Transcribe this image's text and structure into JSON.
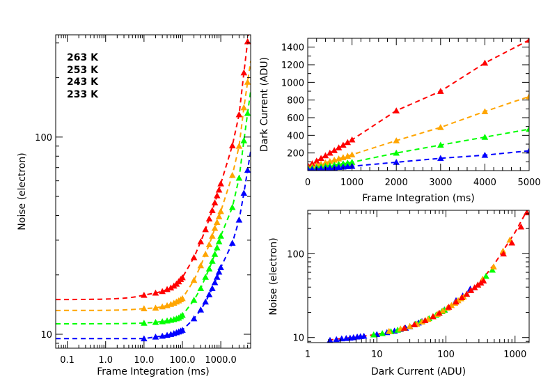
{
  "chart_data": [
    {
      "type": "line",
      "title": "",
      "xlabel": "Frame Integration (ms)",
      "ylabel": "Noise (electron)",
      "xscale": "log",
      "yscale": "log",
      "xlim": [
        0.05,
        6000
      ],
      "ylim": [
        8.5,
        330
      ],
      "xticks": [
        {
          "value": 0.1,
          "label": "0.1"
        },
        {
          "value": 1,
          "label": "1.0"
        },
        {
          "value": 10,
          "label": "10.0"
        },
        {
          "value": 100,
          "label": "100.0"
        },
        {
          "value": 1000,
          "label": "1000.0"
        }
      ],
      "yticks": [
        {
          "value": 10,
          "label": "10"
        },
        {
          "value": 100,
          "label": "100"
        }
      ],
      "legend": [
        {
          "label": "263 K",
          "color": "#ff0000"
        },
        {
          "label": "253 K",
          "color": "#ffa500"
        },
        {
          "label": "243 K",
          "color": "#00ff00"
        },
        {
          "label": "233 K",
          "color": "#0000ff"
        }
      ],
      "legend_position": "top-left",
      "x": [
        10,
        20,
        30,
        40,
        50,
        60,
        70,
        80,
        90,
        100,
        200,
        300,
        400,
        500,
        600,
        700,
        800,
        900,
        1000,
        2000,
        3000,
        4000,
        5000
      ],
      "series": [
        {
          "name": "263 K",
          "color": "#ff0000",
          "base": 15.0,
          "values": [
            15.8,
            16.2,
            16.5,
            16.9,
            17.2,
            17.6,
            18.0,
            18.5,
            19.0,
            19.4,
            24.5,
            29.5,
            34.0,
            38.5,
            42.5,
            46.5,
            50.5,
            54.0,
            58.0,
            90.5,
            130.0,
            212.0,
            305.0
          ]
        },
        {
          "name": "253 K",
          "color": "#ffa500",
          "base": 13.2,
          "values": [
            13.5,
            13.6,
            13.8,
            14.0,
            14.2,
            14.4,
            14.6,
            14.8,
            15.0,
            15.2,
            18.8,
            22.3,
            25.5,
            28.5,
            31.5,
            34.5,
            37.0,
            39.5,
            42.0,
            64.0,
            90.0,
            141.0,
            190.0
          ]
        },
        {
          "name": "243 K",
          "color": "#00ff00",
          "base": 11.3,
          "values": [
            11.4,
            11.5,
            11.6,
            11.7,
            11.8,
            11.9,
            12.0,
            12.1,
            12.3,
            12.5,
            14.9,
            17.1,
            19.5,
            21.5,
            23.5,
            25.5,
            27.5,
            29.5,
            31.5,
            44.0,
            62.0,
            96.0,
            132.0
          ]
        },
        {
          "name": "233 K",
          "color": "#0000ff",
          "base": 9.5,
          "values": [
            9.5,
            9.7,
            9.8,
            9.9,
            10.0,
            10.1,
            10.2,
            10.3,
            10.4,
            10.5,
            12.0,
            13.3,
            14.6,
            15.9,
            17.1,
            18.3,
            19.5,
            20.7,
            21.8,
            29.0,
            38.0,
            52.0,
            68.0
          ]
        }
      ]
    },
    {
      "type": "line",
      "title": "",
      "xlabel": "Frame Integration (ms)",
      "ylabel": "Dark Current (ADU)",
      "xscale": "linear",
      "yscale": "linear",
      "xlim": [
        0,
        5000
      ],
      "ylim": [
        0,
        1500
      ],
      "xticks": [
        {
          "value": 0,
          "label": "0"
        },
        {
          "value": 1000,
          "label": "1000"
        },
        {
          "value": 2000,
          "label": "2000"
        },
        {
          "value": 3000,
          "label": "3000"
        },
        {
          "value": 4000,
          "label": "4000"
        },
        {
          "value": 5000,
          "label": "5000"
        }
      ],
      "yticks": [
        {
          "value": 200,
          "label": "200"
        },
        {
          "value": 400,
          "label": "400"
        },
        {
          "value": 600,
          "label": "600"
        },
        {
          "value": 800,
          "label": "800"
        },
        {
          "value": 1000,
          "label": "1000"
        },
        {
          "value": 1200,
          "label": "1200"
        },
        {
          "value": 1400,
          "label": "1400"
        }
      ],
      "x": [
        10,
        100,
        200,
        300,
        400,
        500,
        600,
        700,
        800,
        900,
        1000,
        2000,
        3000,
        4000,
        5000
      ],
      "series": [
        {
          "name": "263 K",
          "color": "#ff0000",
          "values": [
            50,
            80,
            110,
            140,
            170,
            200,
            230,
            260,
            290,
            320,
            350,
            680,
            900,
            1220,
            1480
          ]
        },
        {
          "name": "253 K",
          "color": "#ffa500",
          "values": [
            30,
            45,
            60,
            75,
            90,
            105,
            120,
            135,
            150,
            165,
            180,
            340,
            490,
            670,
            840
          ]
        },
        {
          "name": "243 K",
          "color": "#00ff00",
          "values": [
            22,
            28,
            35,
            42,
            50,
            57,
            65,
            72,
            80,
            87,
            95,
            200,
            290,
            380,
            470
          ]
        },
        {
          "name": "233 K",
          "color": "#0000ff",
          "values": [
            10,
            14,
            18,
            22,
            26,
            30,
            34,
            38,
            42,
            46,
            50,
            95,
            140,
            175,
            225
          ]
        }
      ]
    },
    {
      "type": "scatter",
      "title": "",
      "xlabel": "Dark Current (ADU)",
      "ylabel": "Noise (electron)",
      "xscale": "log",
      "yscale": "log",
      "xlim": [
        1,
        1600
      ],
      "ylim": [
        8.7,
        330
      ],
      "xticks": [
        {
          "value": 1,
          "label": "1"
        },
        {
          "value": 10,
          "label": "10"
        },
        {
          "value": 100,
          "label": "100"
        },
        {
          "value": 1000,
          "label": "1000"
        }
      ],
      "yticks": [
        {
          "value": 10,
          "label": "10"
        },
        {
          "value": 100,
          "label": "100"
        }
      ],
      "curve": {
        "color": "#ff0000",
        "x": [
          2,
          3,
          5,
          10,
          20,
          30,
          50,
          70,
          100,
          150,
          200,
          300,
          500,
          700,
          1000,
          1500
        ],
        "y": [
          9.3,
          9.7,
          10.1,
          10.9,
          12.3,
          13.6,
          16.0,
          18.5,
          22.0,
          27.7,
          33.0,
          44.0,
          75.0,
          115.0,
          180.0,
          330.0
        ]
      },
      "series": [
        {
          "name": "233 K",
          "color": "#0000ff",
          "x": [
            2.1,
            2.6,
            3.1,
            3.6,
            4.1,
            4.6,
            5.2,
            5.8,
            6.5,
            10,
            14,
            18,
            22,
            26,
            30,
            35,
            40,
            45,
            95,
            140,
            175,
            225
          ],
          "y": [
            9.3,
            9.5,
            9.7,
            9.8,
            9.9,
            10.0,
            10.2,
            10.3,
            10.4,
            10.9,
            11.5,
            12.0,
            12.5,
            13.0,
            13.5,
            14.3,
            15.0,
            15.6,
            21.5,
            27.7,
            31.5,
            38.0
          ]
        },
        {
          "name": "243 K",
          "color": "#00ff00",
          "x": [
            9,
            12,
            16,
            20,
            25,
            30,
            36,
            43,
            50,
            57,
            65,
            72,
            80,
            87,
            95,
            200,
            290,
            380,
            470
          ],
          "y": [
            10.8,
            11.2,
            11.8,
            12.3,
            13.0,
            13.6,
            14.5,
            15.4,
            16.0,
            16.9,
            17.8,
            18.6,
            19.6,
            20.5,
            21.3,
            33.0,
            42.5,
            54.0,
            64.0
          ]
        },
        {
          "name": "253 K",
          "color": "#ffa500",
          "x": [
            15,
            22,
            30,
            38,
            45,
            55,
            65,
            75,
            90,
            105,
            120,
            135,
            150,
            165,
            180,
            340,
            490,
            670,
            840
          ],
          "y": [
            11.9,
            12.7,
            13.6,
            14.5,
            15.4,
            16.6,
            17.8,
            19.0,
            20.8,
            22.5,
            24.2,
            25.8,
            27.7,
            29.2,
            30.6,
            50.0,
            70.0,
            108.0,
            146.0
          ]
        },
        {
          "name": "263 K",
          "color": "#ff0000",
          "x": [
            25,
            35,
            50,
            65,
            80,
            110,
            140,
            170,
            200,
            230,
            260,
            290,
            320,
            350,
            680,
            900,
            1220,
            1480
          ],
          "y": [
            13.0,
            14.3,
            16.0,
            17.8,
            19.6,
            23.1,
            26.7,
            30.1,
            33.0,
            36.5,
            39.5,
            42.5,
            45.0,
            47.5,
            100.0,
            135.0,
            210.0,
            310.0
          ]
        }
      ]
    }
  ]
}
